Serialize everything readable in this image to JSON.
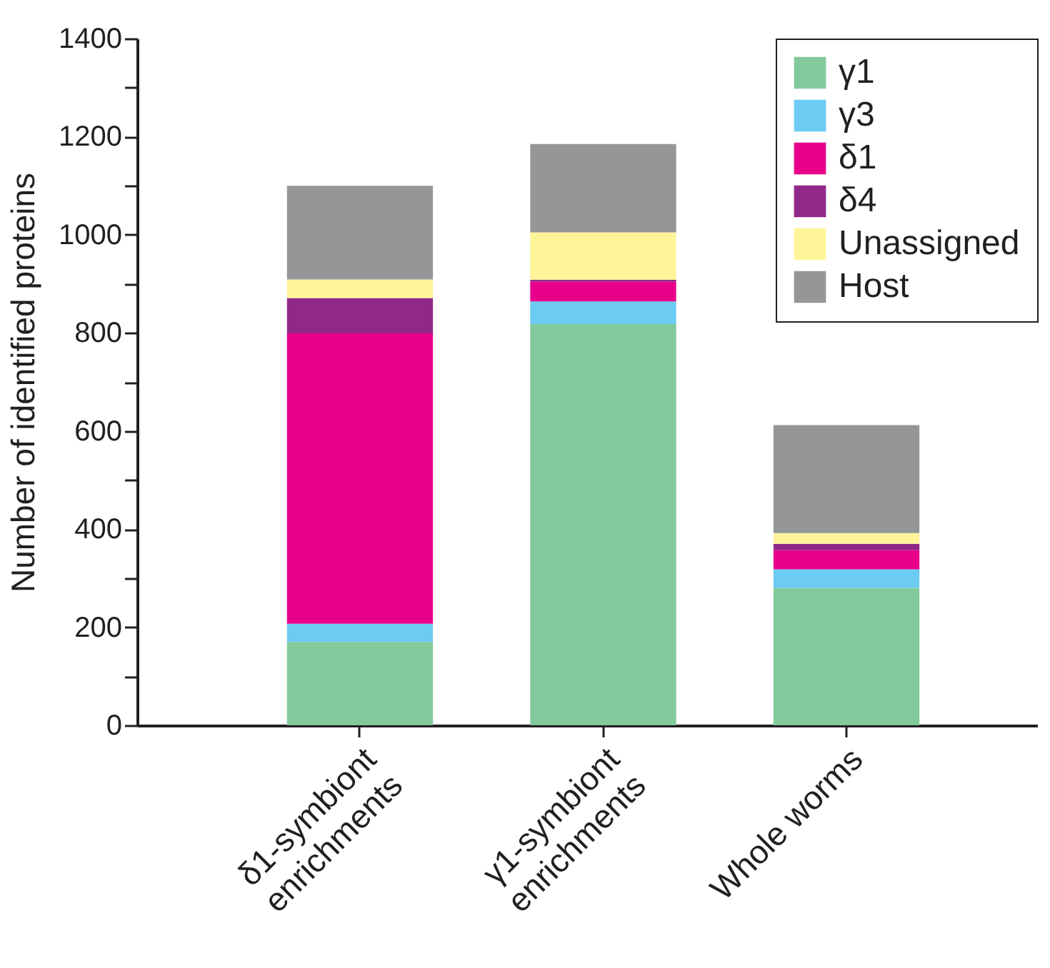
{
  "chart_data": {
    "type": "bar",
    "stacked": true,
    "ylabel": "Number of identified proteins",
    "categories": [
      "δ1-symbiont\nenrichments",
      "γ1-symbiont\nenrichments",
      "Whole worms"
    ],
    "series": [
      {
        "name": "γ1",
        "color": "#82c99b",
        "values": [
          170,
          818,
          280
        ]
      },
      {
        "name": "γ3",
        "color": "#6ccbf2",
        "values": [
          37,
          46,
          38
        ]
      },
      {
        "name": "δ1",
        "color": "#e8008a",
        "values": [
          592,
          40,
          39
        ]
      },
      {
        "name": "δ4",
        "color": "#902889",
        "values": [
          72,
          4,
          13
        ]
      },
      {
        "name": "Unassigned",
        "color": "#fef49a",
        "values": [
          38,
          97,
          22
        ]
      },
      {
        "name": "Host",
        "color": "#959698",
        "values": [
          191,
          180,
          220
        ]
      }
    ],
    "ylim": [
      0,
      1400
    ],
    "yticks": [
      0,
      {
        "value": 100,
        "label": null
      },
      200,
      {
        "value": 300,
        "label": null
      },
      400,
      {
        "value": 500,
        "label": null
      },
      600,
      {
        "value": 700,
        "label": null
      },
      800,
      {
        "value": 900,
        "label": null
      },
      1000,
      {
        "value": 1100,
        "label": null
      },
      1200,
      {
        "value": 1300,
        "label": null
      },
      1400
    ],
    "legend": "top right"
  }
}
